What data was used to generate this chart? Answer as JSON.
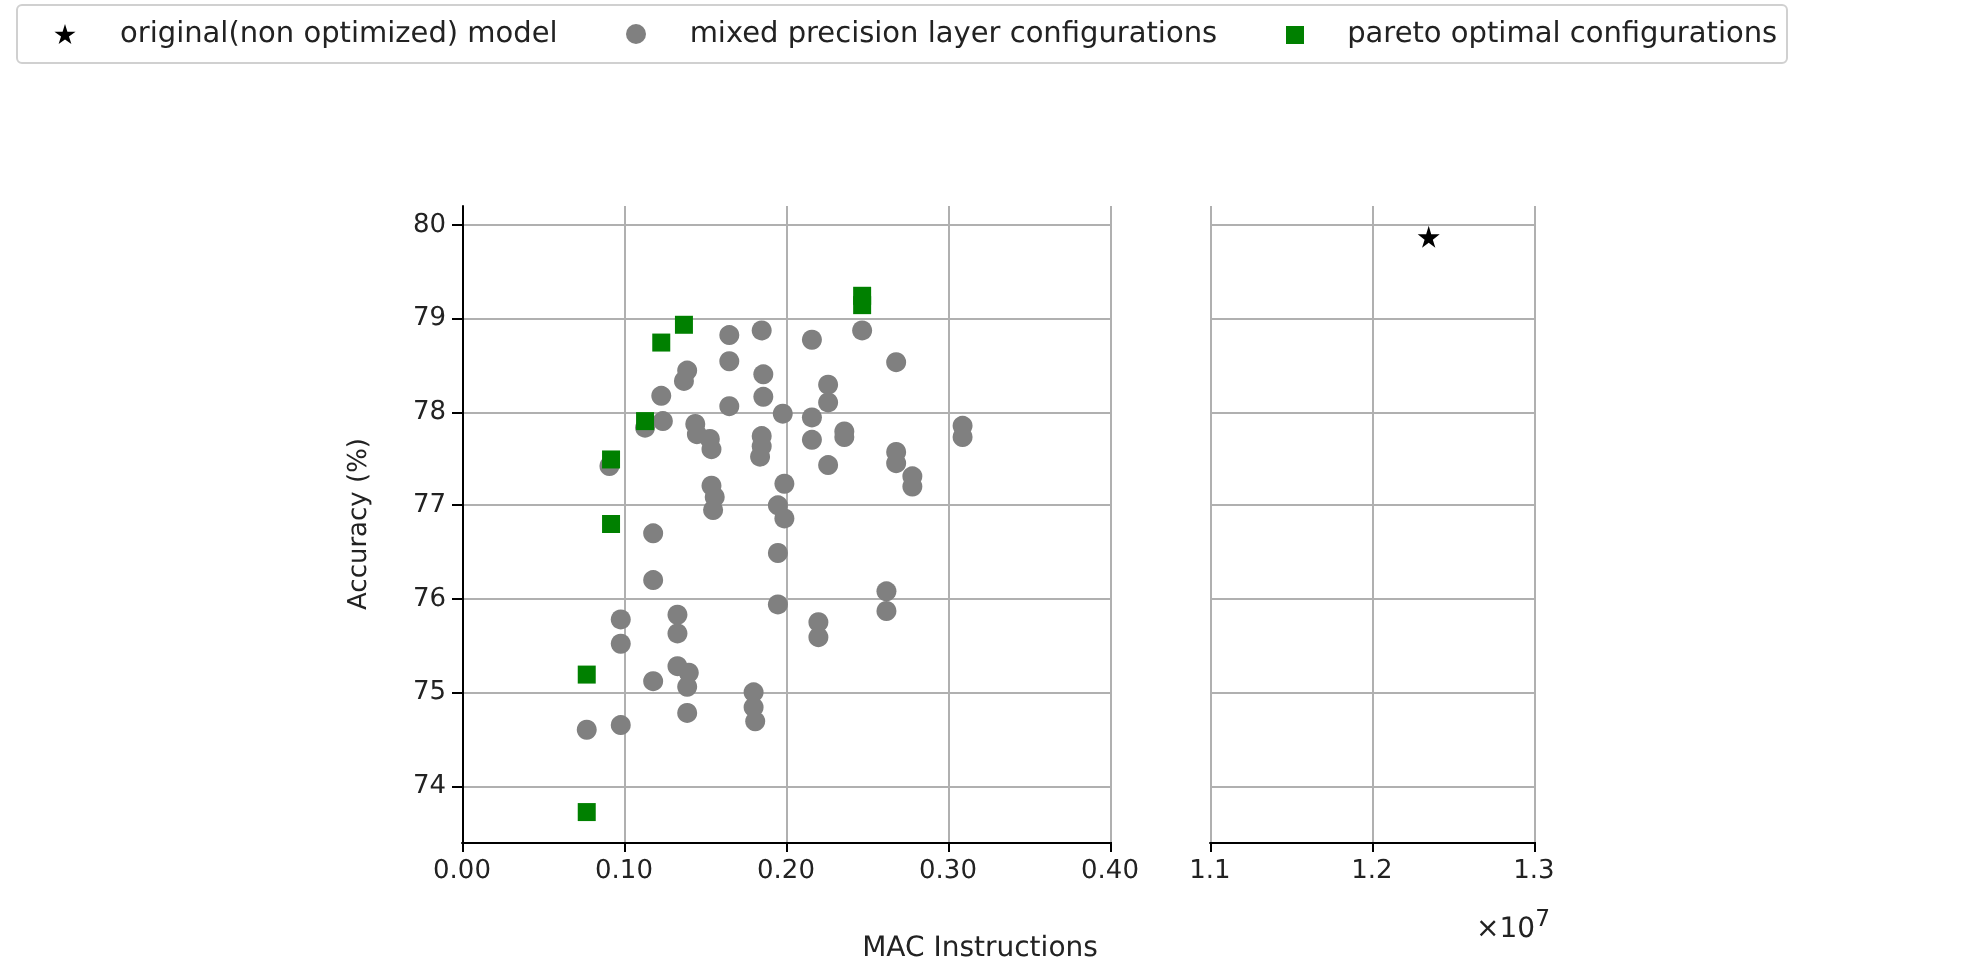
{
  "chart_data": [
    {
      "type": "scatter",
      "xlabel": "MAC Instructions",
      "ylabel": "Accuracy (%)",
      "legend": "top",
      "grid": true,
      "xlim": [
        0,
        0.4
      ],
      "xticks": [
        {
          "value": 0,
          "label": "0.00"
        },
        {
          "value": 0.1,
          "label": "0.10"
        },
        {
          "value": 0.2,
          "label": "0.20"
        },
        {
          "value": 0.3,
          "label": "0.30"
        },
        {
          "value": 0.4,
          "label": "0.40"
        }
      ],
      "ylim": [
        73.4,
        80.2
      ],
      "yticks": [
        74,
        75,
        76,
        77,
        78,
        79,
        80
      ],
      "series": [
        {
          "name": "mixed precision layer configurations",
          "color": "#808080",
          "marker": "circle",
          "x": [
            0.077,
            0.098,
            0.098,
            0.098,
            0.118,
            0.118,
            0.118,
            0.133,
            0.133,
            0.133,
            0.14,
            0.139,
            0.139,
            0.18,
            0.18,
            0.181,
            0.091,
            0.113,
            0.124,
            0.123,
            0.137,
            0.139,
            0.144,
            0.145,
            0.153,
            0.154,
            0.154,
            0.156,
            0.155,
            0.165,
            0.165,
            0.165,
            0.185,
            0.186,
            0.186,
            0.185,
            0.185,
            0.184,
            0.198,
            0.199,
            0.195,
            0.199,
            0.195,
            0.195,
            0.216,
            0.247,
            0.268,
            0.226,
            0.226,
            0.216,
            0.216,
            0.236,
            0.236,
            0.226,
            0.268,
            0.268,
            0.278,
            0.278,
            0.309,
            0.309,
            0.262,
            0.262,
            0.22,
            0.22
          ],
          "values": [
            74.6,
            74.65,
            75.78,
            75.52,
            75.12,
            76.2,
            76.7,
            75.83,
            75.63,
            75.28,
            75.21,
            75.06,
            74.78,
            75.0,
            74.84,
            74.69,
            77.42,
            77.83,
            77.9,
            78.17,
            78.33,
            78.44,
            77.87,
            77.76,
            77.71,
            77.6,
            77.21,
            77.09,
            76.95,
            78.82,
            78.54,
            78.06,
            78.87,
            78.4,
            78.16,
            77.74,
            77.63,
            77.52,
            77.98,
            77.23,
            77.0,
            76.86,
            76.49,
            75.94,
            78.77,
            78.87,
            78.53,
            78.29,
            78.1,
            77.94,
            77.7,
            77.79,
            77.73,
            77.43,
            77.57,
            77.45,
            77.31,
            77.2,
            77.85,
            77.73,
            76.08,
            75.87,
            75.75,
            75.59
          ]
        },
        {
          "name": "pareto optimal configurations",
          "color": "#008000",
          "marker": "square",
          "x": [
            0.077,
            0.077,
            0.092,
            0.092,
            0.113,
            0.123,
            0.137,
            0.247,
            0.247
          ],
          "values": [
            73.72,
            75.19,
            76.8,
            77.49,
            77.9,
            78.74,
            78.93,
            79.14,
            79.24
          ]
        }
      ]
    },
    {
      "type": "scatter",
      "grid": true,
      "tick_labels": "x",
      "annotations": [
        "×10$^{7}$"
      ],
      "xlim": [
        1.1,
        1.3
      ],
      "xticks": [
        1.1,
        1.2,
        1.3
      ],
      "ylim": [
        73.4,
        80.2
      ],
      "yticks": [
        74,
        75,
        76,
        77,
        78,
        79,
        80
      ],
      "series": [
        {
          "name": "original(non optimized) model",
          "color": "#000000",
          "marker": "star",
          "x": [
            1.235
          ],
          "values": [
            79.87
          ]
        }
      ]
    }
  ]
}
